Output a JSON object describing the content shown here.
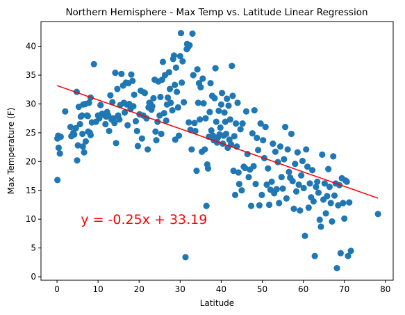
{
  "chart_data": {
    "type": "scatter",
    "title": "Northern Hemisphere - Max Temp vs. Latitude Linear Regression",
    "xlabel": "Latitude",
    "ylabel": "Max Temperature (F)",
    "xlim": [
      -3.9,
      81.9
    ],
    "ylim": [
      -0.6,
      44.3
    ],
    "xticks": [
      0,
      10,
      20,
      30,
      40,
      50,
      60,
      70,
      80
    ],
    "yticks": [
      0,
      5,
      10,
      15,
      20,
      25,
      30,
      35,
      40
    ],
    "grid": false,
    "point_color": "#1f77b4",
    "line_color": "#ff0000",
    "annotation": {
      "text": "y = -0.25x + 33.19",
      "color": "#ff0000",
      "x": 5.8,
      "y": 10
    },
    "regression": {
      "slope": -0.25,
      "intercept": 33.19,
      "x_range": [
        0,
        78.2
      ]
    },
    "points": [
      [
        0.1,
        16.8
      ],
      [
        0.1,
        24
      ],
      [
        0.3,
        24.5
      ],
      [
        0.4,
        22.4
      ],
      [
        0.7,
        21.4
      ],
      [
        0.9,
        24.3
      ],
      [
        2,
        28.7
      ],
      [
        3.3,
        26
      ],
      [
        3.5,
        24.4
      ],
      [
        4,
        25
      ],
      [
        4.2,
        24.7
      ],
      [
        4.6,
        25.8
      ],
      [
        4.8,
        32.1
      ],
      [
        4.9,
        20.2
      ],
      [
        5.1,
        22.8
      ],
      [
        5.3,
        29.5
      ],
      [
        5.6,
        26.5
      ],
      [
        5.8,
        27.8
      ],
      [
        6.1,
        28
      ],
      [
        6.2,
        24.8
      ],
      [
        6.3,
        22.6
      ],
      [
        6.4,
        29.9
      ],
      [
        6.6,
        21.6
      ],
      [
        6.9,
        30
      ],
      [
        7,
        23.5
      ],
      [
        7.3,
        28
      ],
      [
        7.5,
        27.9
      ],
      [
        7.6,
        25.2
      ],
      [
        7.8,
        30.2
      ],
      [
        8,
        25
      ],
      [
        8.2,
        24.6
      ],
      [
        8.2,
        31.1
      ],
      [
        8.5,
        26.8
      ],
      [
        9,
        36.9
      ],
      [
        9.5,
        26.9
      ],
      [
        10,
        28
      ],
      [
        10.3,
        27.5
      ],
      [
        10.6,
        29.8
      ],
      [
        11,
        28.3
      ],
      [
        11.4,
        28.1
      ],
      [
        11.8,
        26.5
      ],
      [
        12,
        27.8
      ],
      [
        12.2,
        28.6
      ],
      [
        12.5,
        28
      ],
      [
        12.7,
        25.3
      ],
      [
        13,
        31.5
      ],
      [
        13.3,
        27.3
      ],
      [
        13.5,
        30.3
      ],
      [
        13.7,
        27.5
      ],
      [
        14,
        26.7
      ],
      [
        14.2,
        35.4
      ],
      [
        14.4,
        23.2
      ],
      [
        14.7,
        32.6
      ],
      [
        14.9,
        28
      ],
      [
        15.2,
        27.3
      ],
      [
        15.4,
        29.8
      ],
      [
        15.7,
        35.2
      ],
      [
        16.1,
        33.2
      ],
      [
        16.3,
        30.2
      ],
      [
        16.5,
        28.5
      ],
      [
        16.8,
        33.7
      ],
      [
        17,
        29.9
      ],
      [
        17.2,
        26.3
      ],
      [
        17.4,
        33.6
      ],
      [
        17.6,
        30
      ],
      [
        17.9,
        29.1
      ],
      [
        18.1,
        35.1
      ],
      [
        18.4,
        34
      ],
      [
        18.6,
        29.6
      ],
      [
        18.8,
        31.6
      ],
      [
        19.2,
        27
      ],
      [
        19.5,
        25.3
      ],
      [
        19.7,
        22.7
      ],
      [
        20.1,
        28.2
      ],
      [
        20.4,
        32.3
      ],
      [
        20.7,
        24
      ],
      [
        21,
        28
      ],
      [
        21.2,
        32
      ],
      [
        21.4,
        31.9
      ],
      [
        21.8,
        27.5
      ],
      [
        22.1,
        22.1
      ],
      [
        22.3,
        29.4
      ],
      [
        22.5,
        30.2
      ],
      [
        22.8,
        30
      ],
      [
        23,
        29
      ],
      [
        23.2,
        29.6
      ],
      [
        23.5,
        31
      ],
      [
        23.8,
        34.2
      ],
      [
        24,
        25.2
      ],
      [
        24.2,
        23.7
      ],
      [
        24.5,
        26.9
      ],
      [
        24.7,
        33.9
      ],
      [
        25,
        28
      ],
      [
        25.2,
        31.2
      ],
      [
        25.4,
        24.8
      ],
      [
        25.6,
        34.2
      ],
      [
        25.8,
        37.3
      ],
      [
        26.1,
        28.4
      ],
      [
        26.3,
        35
      ],
      [
        26.6,
        27.1
      ],
      [
        26.8,
        29.9
      ],
      [
        27,
        31.1
      ],
      [
        27.3,
        35.5
      ],
      [
        27.5,
        32.6
      ],
      [
        27.7,
        30.2
      ],
      [
        28.1,
        28.9
      ],
      [
        28.3,
        37.8
      ],
      [
        28.5,
        38.4
      ],
      [
        28.7,
        33.3
      ],
      [
        28.8,
        23.8
      ],
      [
        29,
        36.3
      ],
      [
        29.2,
        32.1
      ],
      [
        29.5,
        29.4
      ],
      [
        29.7,
        24.5
      ],
      [
        30,
        38.3
      ],
      [
        30.2,
        42.3
      ],
      [
        30.4,
        33.7
      ],
      [
        30.6,
        37.4
      ],
      [
        30.9,
        30.3
      ],
      [
        31.3,
        3.4
      ],
      [
        31.6,
        39.5
      ],
      [
        31.7,
        40.4
      ],
      [
        31.9,
        39.8
      ],
      [
        32.1,
        26.8
      ],
      [
        32.3,
        40.2
      ],
      [
        32.5,
        25.5
      ],
      [
        32.8,
        22.1
      ],
      [
        33,
        42.2
      ],
      [
        33.2,
        35
      ],
      [
        33.5,
        26.7
      ],
      [
        33.7,
        25.3
      ],
      [
        34,
        18.4
      ],
      [
        34.2,
        36
      ],
      [
        34.4,
        30.2
      ],
      [
        34.6,
        33.6
      ],
      [
        34.8,
        27.3
      ],
      [
        35,
        32.9
      ],
      [
        35.3,
        21.7
      ],
      [
        35.5,
        34.4
      ],
      [
        35.7,
        30.1
      ],
      [
        36,
        22.1
      ],
      [
        36.2,
        27.5
      ],
      [
        36.4,
        12.3
      ],
      [
        36.6,
        19.5
      ],
      [
        36.8,
        18.8
      ],
      [
        37,
        24.3
      ],
      [
        37.2,
        28.6
      ],
      [
        37.4,
        33.6
      ],
      [
        37.6,
        25.4
      ],
      [
        37.8,
        31.4
      ],
      [
        38,
        24.5
      ],
      [
        38.2,
        23.7
      ],
      [
        38.4,
        31
      ],
      [
        38.6,
        36.2
      ],
      [
        38.8,
        26.9
      ],
      [
        39,
        23.3
      ],
      [
        39.2,
        24.2
      ],
      [
        39.4,
        28.8
      ],
      [
        39.6,
        24.7
      ],
      [
        39.8,
        25.9
      ],
      [
        40,
        29.9
      ],
      [
        40.2,
        31.9
      ],
      [
        40.4,
        23.1
      ],
      [
        40.6,
        24.5
      ],
      [
        40.8,
        28.5
      ],
      [
        41,
        26.9
      ],
      [
        41.2,
        24.8
      ],
      [
        41.4,
        30.9
      ],
      [
        41.6,
        22.4
      ],
      [
        41.8,
        29.7
      ],
      [
        42,
        23.8
      ],
      [
        42.2,
        27.3
      ],
      [
        42.4,
        23
      ],
      [
        42.6,
        36.6
      ],
      [
        42.8,
        31.4
      ],
      [
        43,
        18.4
      ],
      [
        43.2,
        24.4
      ],
      [
        43.4,
        14.2
      ],
      [
        43.6,
        26.6
      ],
      [
        43.8,
        22.6
      ],
      [
        44,
        30.2
      ],
      [
        44.2,
        18.1
      ],
      [
        44.4,
        16.1
      ],
      [
        44.7,
        25.6
      ],
      [
        45,
        15
      ],
      [
        45.2,
        26.6
      ],
      [
        45.5,
        19.1
      ],
      [
        45.8,
        18.9
      ],
      [
        46.1,
        28.7
      ],
      [
        46.4,
        21.3
      ],
      [
        46.7,
        17.3
      ],
      [
        47,
        18.6
      ],
      [
        47.3,
        12.3
      ],
      [
        47.6,
        24.9
      ],
      [
        47.9,
        19.2
      ],
      [
        48.1,
        28.9
      ],
      [
        48.4,
        16.1
      ],
      [
        48.7,
        24.1
      ],
      [
        49,
        22
      ],
      [
        49.3,
        12.4
      ],
      [
        49.6,
        26.6
      ],
      [
        49.9,
        14.2
      ],
      [
        50.2,
        23.7
      ],
      [
        50.5,
        20.6
      ],
      [
        50.8,
        26
      ],
      [
        51.1,
        16
      ],
      [
        51.4,
        18.8
      ],
      [
        51.7,
        12.5
      ],
      [
        52,
        15.1
      ],
      [
        52.3,
        16.5
      ],
      [
        52.6,
        23.1
      ],
      [
        52.9,
        14.5
      ],
      [
        53.2,
        21.7
      ],
      [
        53.5,
        15.2
      ],
      [
        53.8,
        19.9
      ],
      [
        54.1,
        12.8
      ],
      [
        54.4,
        22.6
      ],
      [
        54.7,
        17.3
      ],
      [
        55,
        15.3
      ],
      [
        55.3,
        20.4
      ],
      [
        55.6,
        26
      ],
      [
        55.9,
        13.6
      ],
      [
        56.2,
        22.1
      ],
      [
        56.5,
        18.2
      ],
      [
        56.8,
        17.2
      ],
      [
        57.1,
        24.8
      ],
      [
        57.4,
        16.6
      ],
      [
        57.7,
        11.8
      ],
      [
        58,
        19.6
      ],
      [
        58.3,
        14.8
      ],
      [
        58.6,
        21.6
      ],
      [
        58.9,
        16
      ],
      [
        59.2,
        11.5
      ],
      [
        59.5,
        17.6
      ],
      [
        59.8,
        20.1
      ],
      [
        60.1,
        15.4
      ],
      [
        60.4,
        7.1
      ],
      [
        60.7,
        22.1
      ],
      [
        61,
        19.1
      ],
      [
        61.3,
        12
      ],
      [
        61.6,
        16.2
      ],
      [
        61.9,
        13.8
      ],
      [
        62.2,
        18.5
      ],
      [
        62.5,
        13.1
      ],
      [
        62.8,
        3.6
      ],
      [
        63.1,
        15.6
      ],
      [
        63.4,
        16.5
      ],
      [
        63.7,
        14.6
      ],
      [
        64,
        9.9
      ],
      [
        64.3,
        8.7
      ],
      [
        64.6,
        21.2
      ],
      [
        64.9,
        13.4
      ],
      [
        65.2,
        16.2
      ],
      [
        65.5,
        11
      ],
      [
        65.8,
        14
      ],
      [
        66.1,
        18.7
      ],
      [
        66.4,
        15.6
      ],
      [
        66.7,
        12.8
      ],
      [
        67,
        9.6
      ],
      [
        67.3,
        20.9
      ],
      [
        67.6,
        14.1
      ],
      [
        67.9,
        16.2
      ],
      [
        68.2,
        1.5
      ],
      [
        68.5,
        12.4
      ],
      [
        68.8,
        15.9
      ],
      [
        69.1,
        4.1
      ],
      [
        69.4,
        17.1
      ],
      [
        69.7,
        12.8
      ],
      [
        70,
        10.1
      ],
      [
        70.3,
        16.7
      ],
      [
        70.6,
        16.5
      ],
      [
        70.9,
        3.6
      ],
      [
        71.2,
        12.9
      ],
      [
        71.6,
        4.5
      ],
      [
        78.2,
        10.9
      ]
    ]
  }
}
